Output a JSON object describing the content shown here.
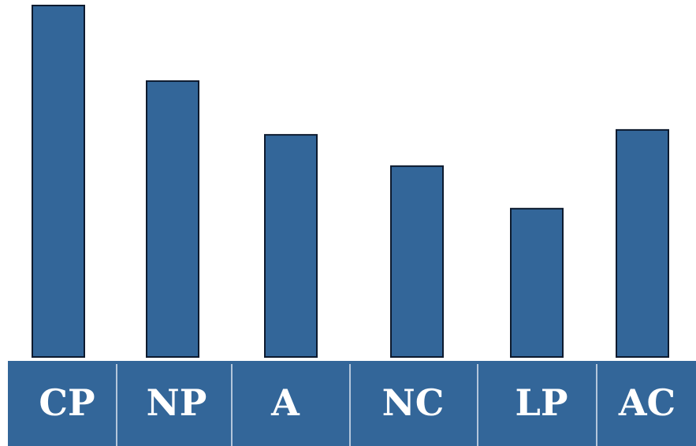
{
  "chart_data": {
    "type": "bar",
    "categories": [
      "CP",
      "NP",
      "A",
      "NC",
      "LP",
      "AC"
    ],
    "values": [
      100,
      78.5,
      63.2,
      54.3,
      42.2,
      64.6
    ],
    "ylim": [
      0,
      100
    ],
    "grid": false,
    "bar_color": "#336699",
    "axis_band_color": "#336699",
    "label_color": "#ffffff"
  }
}
